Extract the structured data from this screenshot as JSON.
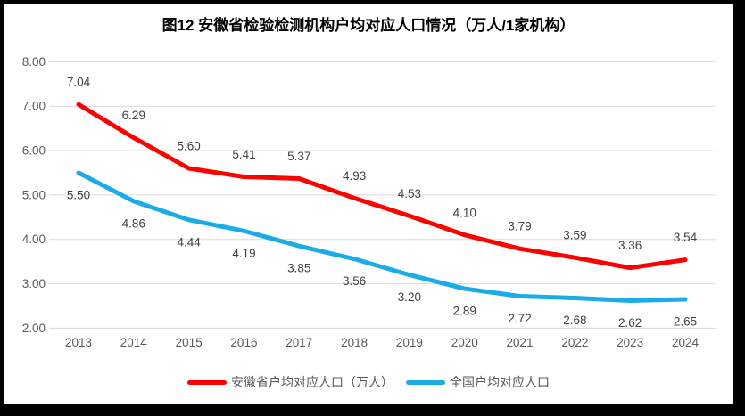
{
  "chart_data": {
    "type": "line",
    "title": "图12 安徽省检验检测机构户均对应人口情况（万人/1家机构）",
    "categories": [
      "2013",
      "2014",
      "2015",
      "2016",
      "2017",
      "2018",
      "2019",
      "2020",
      "2021",
      "2022",
      "2023",
      "2024"
    ],
    "series": [
      {
        "name": "安徽省户均对应人口（万人）",
        "color": "#fe0000",
        "label_position": "above",
        "values": [
          7.04,
          6.29,
          5.6,
          5.41,
          5.37,
          4.93,
          4.53,
          4.1,
          3.79,
          3.59,
          3.36,
          3.54
        ]
      },
      {
        "name": "全国户均对应人口",
        "color": "#1bace8",
        "label_position": "below",
        "values": [
          5.5,
          4.86,
          4.44,
          4.19,
          3.85,
          3.56,
          3.2,
          2.89,
          2.72,
          2.68,
          2.62,
          2.65
        ]
      }
    ],
    "ylim": [
      2.0,
      8.0
    ],
    "y_tick_step": 1.0,
    "y_tick_decimals": 2,
    "grid": true,
    "legend_position": "bottom",
    "xlabel": "",
    "ylabel": "",
    "colors": {
      "gridline": "#d9d9d9",
      "axis_text": "#595959",
      "data_label_text": "#404040",
      "title_text": "#000000",
      "frame_border": "#000000"
    }
  }
}
